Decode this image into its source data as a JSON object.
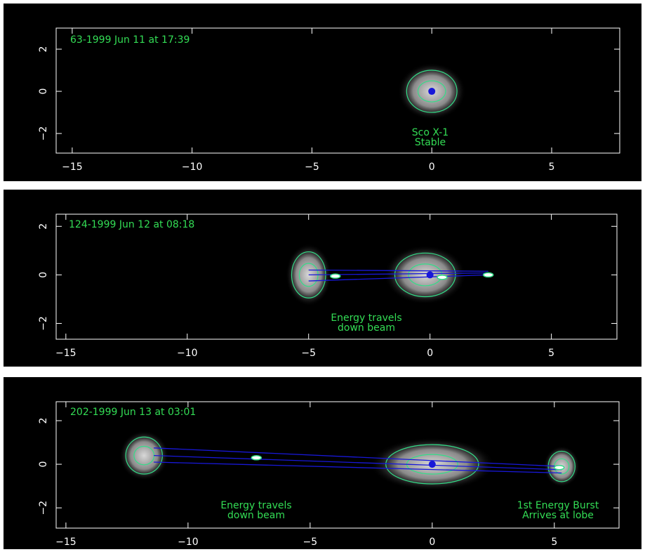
{
  "chart_data": [
    {
      "type": "image",
      "title": "63-1999 Jun 11 at 17:39",
      "annotations": [
        [
          "Sco X-1",
          "Stable"
        ]
      ],
      "xlim": [
        -15.67,
        7.84
      ],
      "ylim": [
        -2.93,
        3.0
      ],
      "xticks": [
        {
          "value": -15,
          "label": "−15"
        },
        {
          "value": -10,
          "label": "−10"
        },
        {
          "value": -5,
          "label": "−5"
        },
        0,
        5
      ],
      "yticks": [
        {
          "value": -2,
          "label": "−2"
        },
        0,
        2
      ],
      "components": [
        {
          "x": 0,
          "y": 0,
          "rx": 1.05,
          "ry": 1.0
        }
      ],
      "core": {
        "x": 0,
        "y": 0
      },
      "beams": [],
      "knots": [],
      "text_color": "#33dd55",
      "contour_color": "#33dd88",
      "beam_color": "#1818d8"
    },
    {
      "type": "image",
      "title": "124-1999 Jun 12 at 08:18",
      "annotations": [
        [
          "Energy travels",
          "down beam"
        ]
      ],
      "xlim": [
        -15.4,
        7.7
      ],
      "ylim": [
        -2.65,
        2.5
      ],
      "xticks": [
        {
          "value": -15,
          "label": "−15"
        },
        {
          "value": -10,
          "label": "−10"
        },
        {
          "value": -5,
          "label": "−5"
        },
        0,
        5
      ],
      "yticks": [
        {
          "value": -2,
          "label": "−2"
        },
        0,
        2
      ],
      "components": [
        {
          "x": -5,
          "y": 0,
          "rx": 0.7,
          "ry": 0.95
        },
        {
          "x": -0.2,
          "y": 0,
          "rx": 1.25,
          "ry": 0.9
        }
      ],
      "core": {
        "x": 0,
        "y": 0
      },
      "beams": [
        {
          "x": [
            -5,
            2.4
          ],
          "y": [
            0.2,
            0.15
          ]
        },
        {
          "x": [
            -5,
            2.4
          ],
          "y": [
            0,
            0.08
          ]
        },
        {
          "x": [
            -5,
            2.4
          ],
          "y": [
            -0.25,
            0
          ]
        }
      ],
      "knots": [
        {
          "x": -3.9,
          "y": -0.05
        },
        {
          "x": 0.5,
          "y": -0.1
        },
        {
          "x": 2.4,
          "y": 0
        }
      ],
      "text_color": "#33dd55",
      "contour_color": "#33dd88",
      "beam_color": "#1818d8"
    },
    {
      "type": "image",
      "title": "202-1999 Jun 13 at 03:01",
      "annotations": [
        [
          "Energy travels",
          "down beam"
        ],
        [
          "1st Energy Burst",
          "Arrives at lobe"
        ]
      ],
      "xlim": [
        -15.4,
        7.65
      ],
      "ylim": [
        -2.93,
        2.87
      ],
      "xticks": [
        {
          "value": -15,
          "label": "−15"
        },
        {
          "value": -10,
          "label": "−10"
        },
        {
          "value": -5,
          "label": "−5"
        },
        0,
        5
      ],
      "yticks": [
        {
          "value": -2,
          "label": "−2"
        },
        0,
        2
      ],
      "components": [
        {
          "x": -11.8,
          "y": 0.4,
          "rx": 0.75,
          "ry": 0.85
        },
        {
          "x": 0,
          "y": 0,
          "rx": 1.9,
          "ry": 0.9
        },
        {
          "x": 5.3,
          "y": -0.1,
          "rx": 0.55,
          "ry": 0.7
        }
      ],
      "core": {
        "x": 0,
        "y": 0
      },
      "beams": [
        {
          "x": [
            -11.4,
            5.3
          ],
          "y": [
            0.75,
            -0.1
          ]
        },
        {
          "x": [
            -11.4,
            5.3
          ],
          "y": [
            0.4,
            -0.25
          ]
        },
        {
          "x": [
            -11.4,
            5.3
          ],
          "y": [
            0.1,
            -0.4
          ]
        }
      ],
      "knots": [
        {
          "x": -7.2,
          "y": 0.3
        },
        {
          "x": 5.2,
          "y": -0.15
        }
      ],
      "text_color": "#33dd55",
      "contour_color": "#33dd88",
      "beam_color": "#1818d8"
    }
  ]
}
